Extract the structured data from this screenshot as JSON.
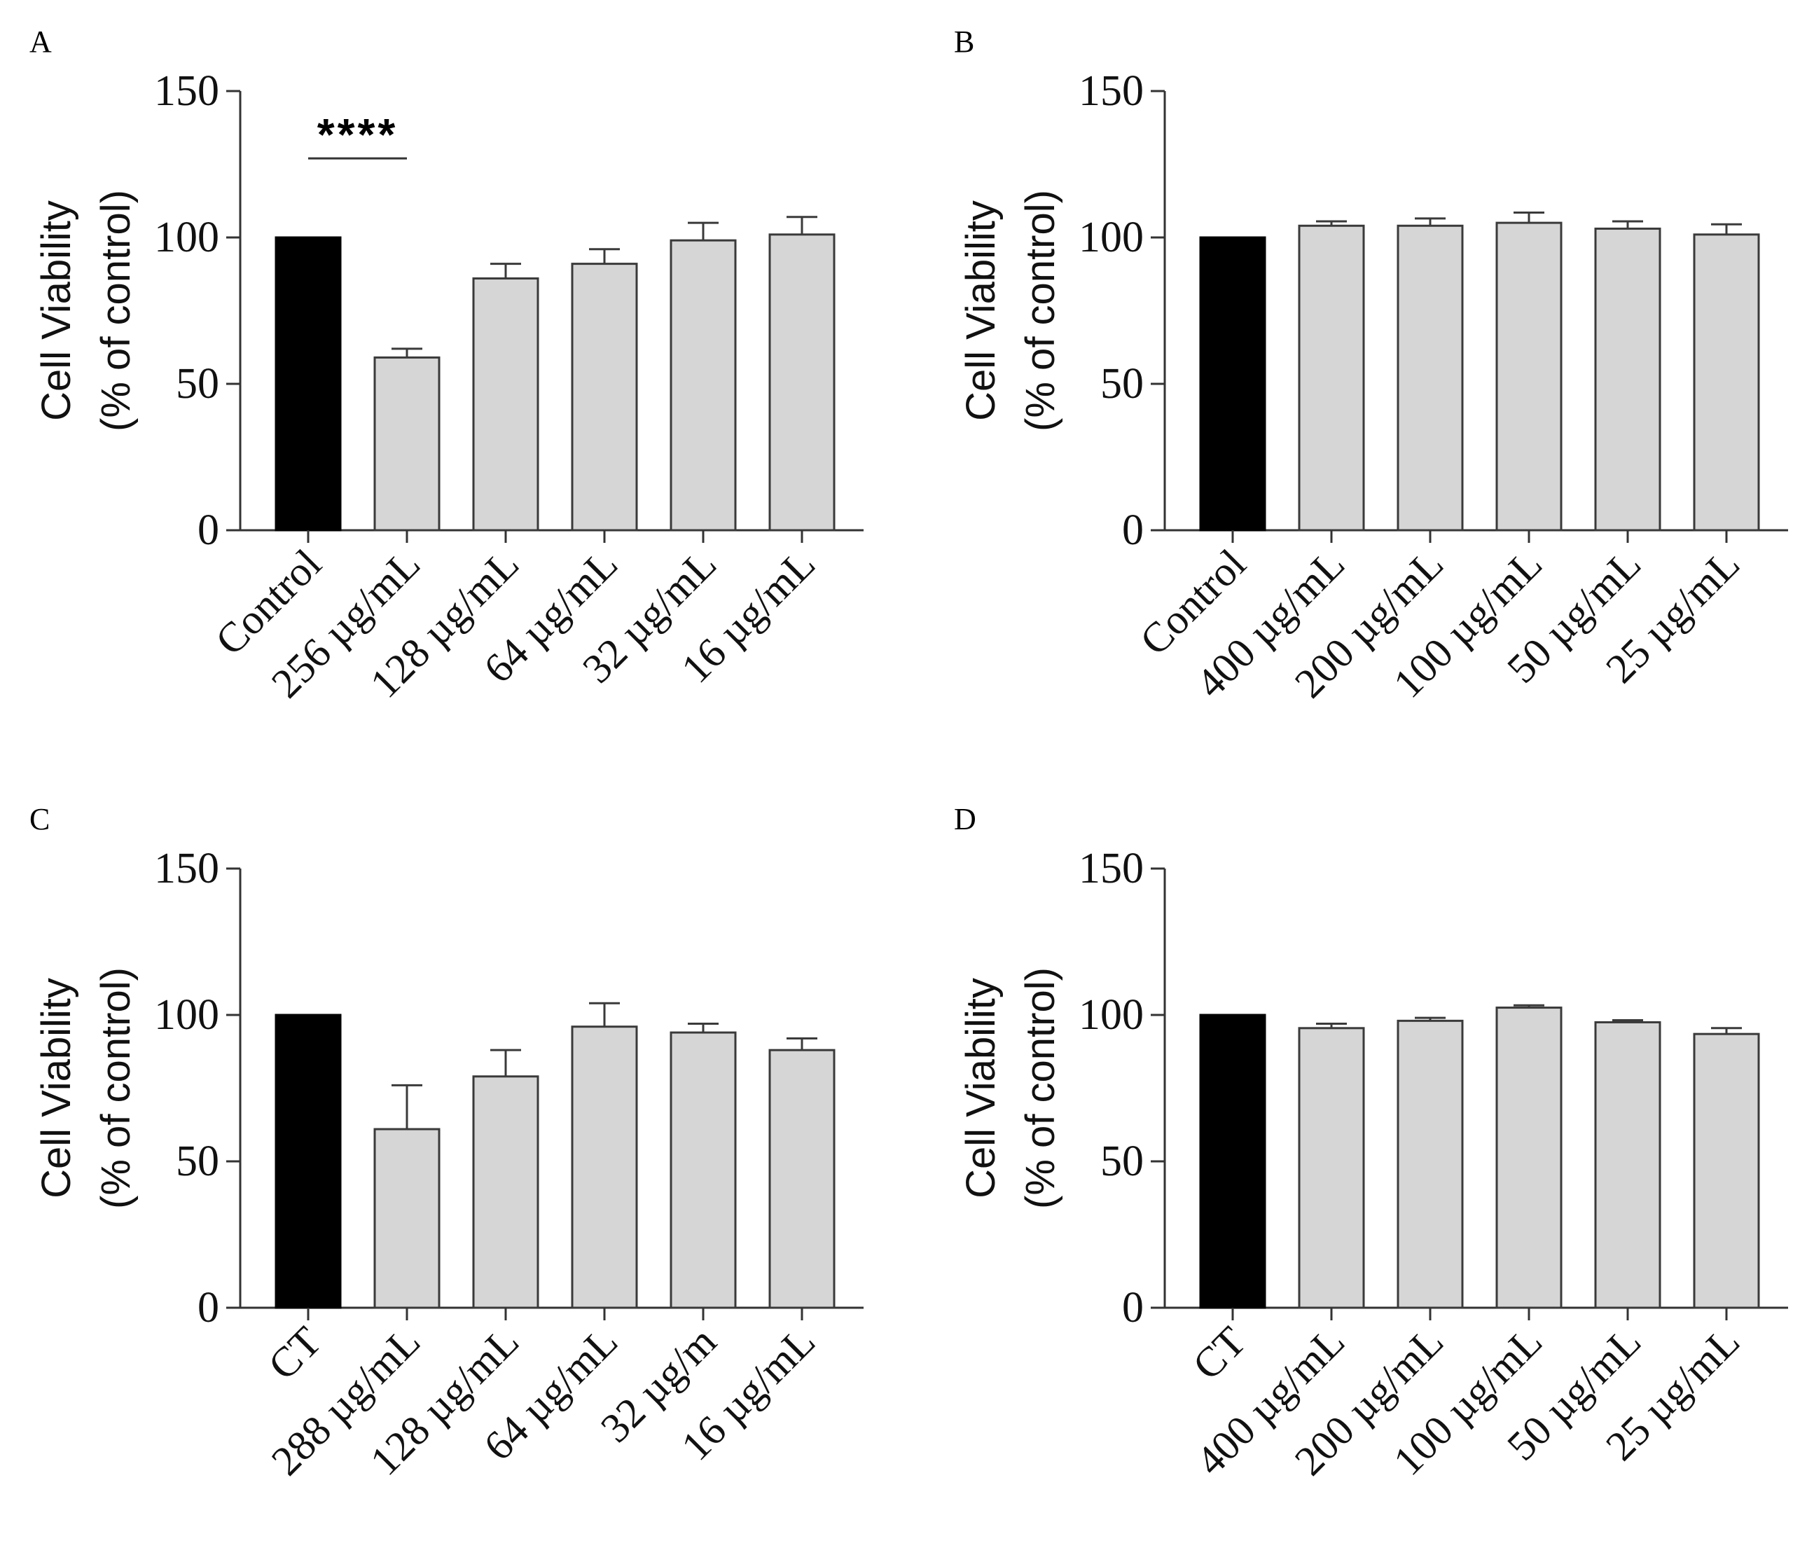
{
  "colors": {
    "control_bar": "#000000",
    "treatment_bar": "#d6d6d6",
    "bar_edge": "#3a3a3a",
    "axis": "#333333"
  },
  "chart_data": [
    {
      "type": "bar",
      "panel": "A",
      "ylabel_line1": "Cell Viability",
      "ylabel_line2": "(% of control)",
      "ylim": [
        0,
        150
      ],
      "yticks": [
        "0",
        "50",
        "100",
        "150"
      ],
      "categories": [
        "Control",
        "256 µg/mL",
        "128 µg/mL",
        "64 µg/mL",
        "32 µg/mL",
        "16 µg/mL"
      ],
      "values": [
        100,
        59,
        86,
        91,
        99,
        101
      ],
      "errors": [
        0,
        3,
        5,
        5,
        6,
        6
      ],
      "significance": {
        "label": "****",
        "from": 0,
        "to": 1
      }
    },
    {
      "type": "bar",
      "panel": "B",
      "ylabel_line1": "Cell Viability",
      "ylabel_line2": "(% of control)",
      "ylim": [
        0,
        150
      ],
      "yticks": [
        "0",
        "50",
        "100",
        "150"
      ],
      "categories": [
        "Control",
        "400 µg/mL",
        "200 µg/mL",
        "100 µg/mL",
        "50 µg/mL",
        "25 µg/mL"
      ],
      "values": [
        100,
        104,
        104,
        105,
        103,
        101
      ],
      "errors": [
        0,
        1.5,
        2.5,
        3.5,
        2.5,
        3.5
      ]
    },
    {
      "type": "bar",
      "panel": "C",
      "ylabel_line1": "Cell Viability",
      "ylabel_line2": "(% of control)",
      "ylim": [
        0,
        150
      ],
      "yticks": [
        "0",
        "50",
        "100",
        "150"
      ],
      "categories": [
        "CT",
        "288 µg/mL",
        "128 µg/mL",
        "64 µg/mL",
        "32 µg/m",
        "16 µg/mL"
      ],
      "values": [
        100,
        61,
        79,
        96,
        94,
        88
      ],
      "errors": [
        0,
        15,
        9,
        8,
        3,
        4
      ]
    },
    {
      "type": "bar",
      "panel": "D",
      "ylabel_line1": "Cell Viability",
      "ylabel_line2": "(% of control)",
      "ylim": [
        0,
        150
      ],
      "yticks": [
        "0",
        "50",
        "100",
        "150"
      ],
      "categories": [
        "CT",
        "400 µg/mL",
        "200 µg/mL",
        "100 µg/mL",
        "50 µg/mL",
        "25 µg/mL"
      ],
      "values": [
        100,
        95.5,
        98,
        102.5,
        97.5,
        93.5
      ],
      "errors": [
        0,
        1.5,
        1,
        0.8,
        0.7,
        2
      ]
    }
  ]
}
